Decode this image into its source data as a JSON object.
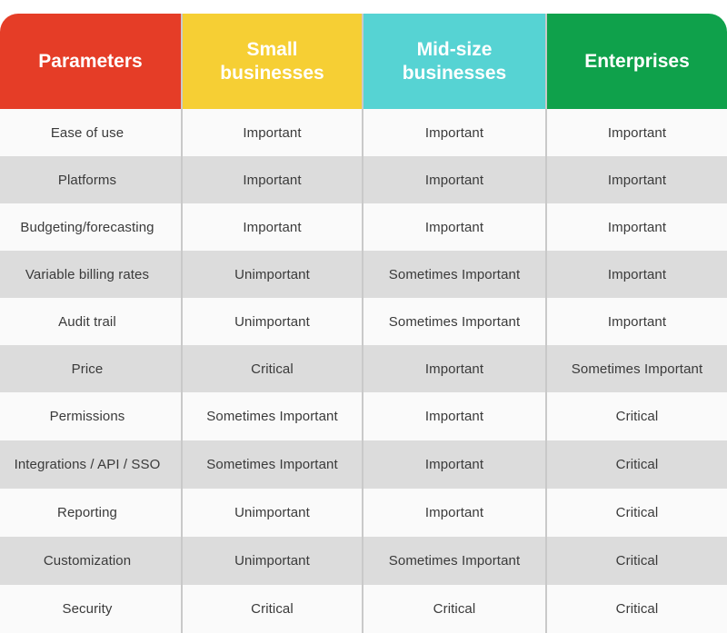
{
  "header": {
    "columns": [
      {
        "label": "Parameters",
        "color": "#e53d27"
      },
      {
        "label": "Small\nbusinesses",
        "color": "#f6cf34"
      },
      {
        "label": "Mid-size\nbusinesses",
        "color": "#56d3d3"
      },
      {
        "label": "Enterprises",
        "color": "#0fa14b"
      }
    ]
  },
  "rows": [
    {
      "parameter": "Ease of use",
      "small": "Important",
      "mid": "Important",
      "enterprise": "Important"
    },
    {
      "parameter": "Platforms",
      "small": "Important",
      "mid": "Important",
      "enterprise": "Important"
    },
    {
      "parameter": "Budgeting/forecasting",
      "small": "Important",
      "mid": "Important",
      "enterprise": "Important"
    },
    {
      "parameter": "Variable billing rates",
      "small": "Unimportant",
      "mid": "Sometimes Important",
      "enterprise": "Important"
    },
    {
      "parameter": "Audit trail",
      "small": "Unimportant",
      "mid": "Sometimes Important",
      "enterprise": "Important"
    },
    {
      "parameter": "Price",
      "small": "Critical",
      "mid": "Important",
      "enterprise": "Sometimes Important"
    },
    {
      "parameter": "Permissions",
      "small": "Sometimes Important",
      "mid": "Important",
      "enterprise": "Critical"
    },
    {
      "parameter": "Integrations / API / SSO",
      "small": "Sometimes Important",
      "mid": "Important",
      "enterprise": "Critical"
    },
    {
      "parameter": "Reporting",
      "small": "Unimportant",
      "mid": "Important",
      "enterprise": "Critical"
    },
    {
      "parameter": "Customization",
      "small": "Unimportant",
      "mid": "Sometimes Important",
      "enterprise": "Critical"
    },
    {
      "parameter": "Security",
      "small": "Critical",
      "mid": "Critical",
      "enterprise": "Critical"
    }
  ]
}
